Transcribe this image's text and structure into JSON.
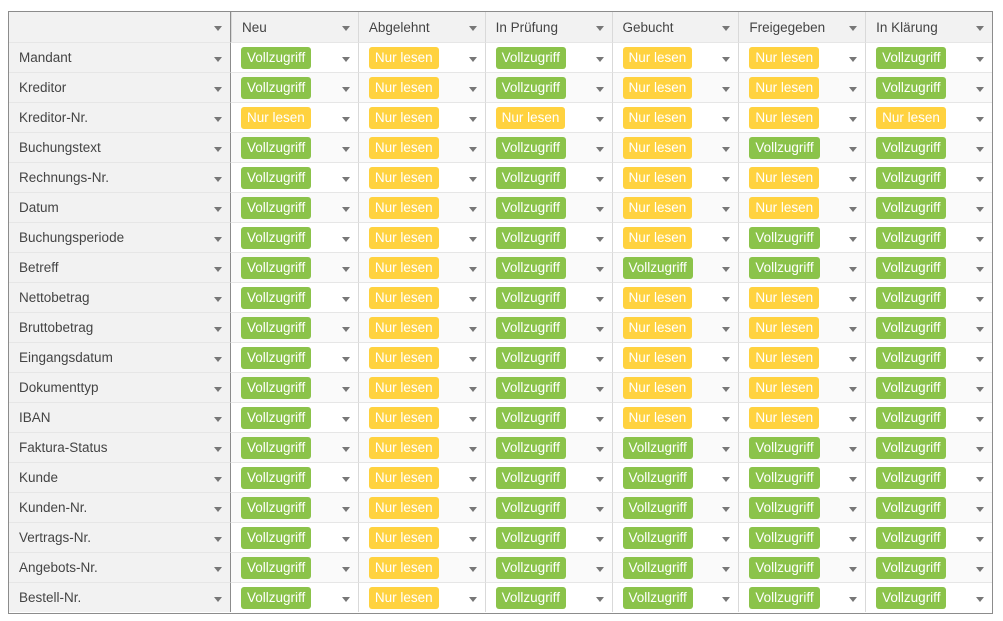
{
  "columns": [
    "",
    "Neu",
    "Abgelehnt",
    "In Prüfung",
    "Gebucht",
    "Freigegeben",
    "In Klärung"
  ],
  "labels": {
    "full": "Vollzugriff",
    "read": "Nur lesen"
  },
  "colors": {
    "full": "#8bc34a",
    "read": "#ffd23f",
    "header_bg": "#f2f2f2",
    "border": "#8c8c8c"
  },
  "rows": [
    {
      "name": "Mandant",
      "perms": [
        "Vollzugriff",
        "Nur lesen",
        "Vollzugriff",
        "Nur lesen",
        "Nur lesen",
        "Vollzugriff"
      ]
    },
    {
      "name": "Kreditor",
      "perms": [
        "Vollzugriff",
        "Nur lesen",
        "Vollzugriff",
        "Nur lesen",
        "Nur lesen",
        "Vollzugriff"
      ]
    },
    {
      "name": "Kreditor-Nr.",
      "perms": [
        "Nur lesen",
        "Nur lesen",
        "Nur lesen",
        "Nur lesen",
        "Nur lesen",
        "Nur lesen"
      ]
    },
    {
      "name": "Buchungstext",
      "perms": [
        "Vollzugriff",
        "Nur lesen",
        "Vollzugriff",
        "Nur lesen",
        "Vollzugriff",
        "Vollzugriff"
      ]
    },
    {
      "name": "Rechnungs-Nr.",
      "perms": [
        "Vollzugriff",
        "Nur lesen",
        "Vollzugriff",
        "Nur lesen",
        "Nur lesen",
        "Vollzugriff"
      ]
    },
    {
      "name": "Datum",
      "perms": [
        "Vollzugriff",
        "Nur lesen",
        "Vollzugriff",
        "Nur lesen",
        "Nur lesen",
        "Vollzugriff"
      ]
    },
    {
      "name": "Buchungsperiode",
      "perms": [
        "Vollzugriff",
        "Nur lesen",
        "Vollzugriff",
        "Nur lesen",
        "Vollzugriff",
        "Vollzugriff"
      ]
    },
    {
      "name": "Betreff",
      "perms": [
        "Vollzugriff",
        "Nur lesen",
        "Vollzugriff",
        "Vollzugriff",
        "Vollzugriff",
        "Vollzugriff"
      ]
    },
    {
      "name": "Nettobetrag",
      "perms": [
        "Vollzugriff",
        "Nur lesen",
        "Vollzugriff",
        "Nur lesen",
        "Nur lesen",
        "Vollzugriff"
      ]
    },
    {
      "name": "Bruttobetrag",
      "perms": [
        "Vollzugriff",
        "Nur lesen",
        "Vollzugriff",
        "Nur lesen",
        "Nur lesen",
        "Vollzugriff"
      ]
    },
    {
      "name": "Eingangsdatum",
      "perms": [
        "Vollzugriff",
        "Nur lesen",
        "Vollzugriff",
        "Nur lesen",
        "Nur lesen",
        "Vollzugriff"
      ]
    },
    {
      "name": "Dokumenttyp",
      "perms": [
        "Vollzugriff",
        "Nur lesen",
        "Vollzugriff",
        "Nur lesen",
        "Nur lesen",
        "Vollzugriff"
      ]
    },
    {
      "name": "IBAN",
      "perms": [
        "Vollzugriff",
        "Nur lesen",
        "Vollzugriff",
        "Nur lesen",
        "Nur lesen",
        "Vollzugriff"
      ]
    },
    {
      "name": "Faktura-Status",
      "perms": [
        "Vollzugriff",
        "Nur lesen",
        "Vollzugriff",
        "Vollzugriff",
        "Vollzugriff",
        "Vollzugriff"
      ]
    },
    {
      "name": "Kunde",
      "perms": [
        "Vollzugriff",
        "Nur lesen",
        "Vollzugriff",
        "Vollzugriff",
        "Vollzugriff",
        "Vollzugriff"
      ]
    },
    {
      "name": "Kunden-Nr.",
      "perms": [
        "Vollzugriff",
        "Nur lesen",
        "Vollzugriff",
        "Vollzugriff",
        "Vollzugriff",
        "Vollzugriff"
      ]
    },
    {
      "name": "Vertrags-Nr.",
      "perms": [
        "Vollzugriff",
        "Nur lesen",
        "Vollzugriff",
        "Vollzugriff",
        "Vollzugriff",
        "Vollzugriff"
      ]
    },
    {
      "name": "Angebots-Nr.",
      "perms": [
        "Vollzugriff",
        "Nur lesen",
        "Vollzugriff",
        "Vollzugriff",
        "Vollzugriff",
        "Vollzugriff"
      ]
    },
    {
      "name": "Bestell-Nr.",
      "perms": [
        "Vollzugriff",
        "Nur lesen",
        "Vollzugriff",
        "Vollzugriff",
        "Vollzugriff",
        "Vollzugriff"
      ]
    }
  ]
}
